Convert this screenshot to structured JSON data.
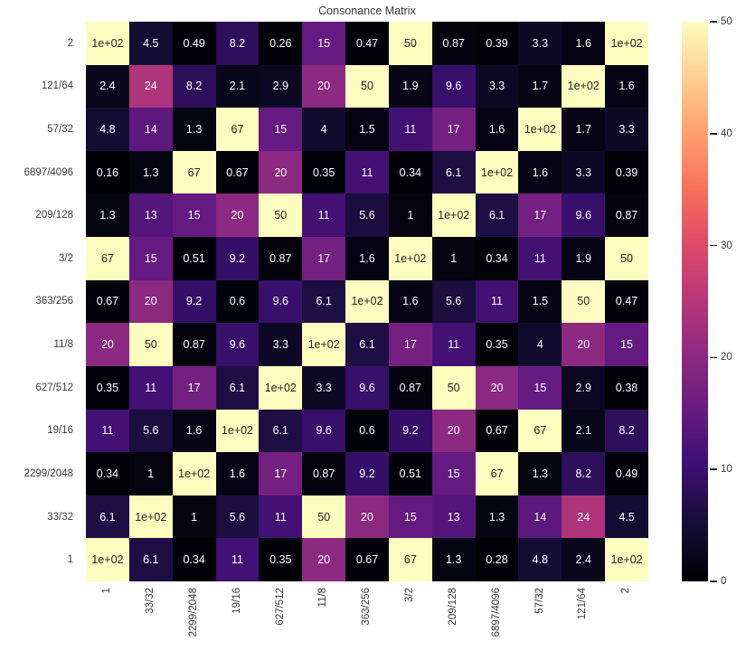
{
  "title": "Consonance Matrix",
  "colors": {
    "background": "#ffffff",
    "axis_text": "#3a3a3a",
    "annot_dark": "#262626",
    "annot_light": "#ffffff",
    "magma_anchors": [
      "#000004",
      "#140e36",
      "#3b0f70",
      "#641a80",
      "#8c2981",
      "#b73779",
      "#de4968",
      "#f7705c",
      "#fe9f6d",
      "#fecf92",
      "#fcfdbf"
    ]
  },
  "chart_data": {
    "type": "heatmap",
    "title": "Consonance Matrix",
    "colormap": "magma",
    "vmin": 0,
    "vmax": 50,
    "grid": false,
    "x_labels": [
      "1",
      "33/32",
      "2299/2048",
      "19/16",
      "627/512",
      "11/8",
      "363/256",
      "3/2",
      "209/128",
      "6897/4096",
      "57/32",
      "121/64",
      "2"
    ],
    "y_labels": [
      "2",
      "121/64",
      "57/32",
      "6897/4096",
      "209/128",
      "3/2",
      "363/256",
      "11/8",
      "627/512",
      "19/16",
      "2299/2048",
      "33/32",
      "1"
    ],
    "values": [
      [
        100,
        4.5,
        0.49,
        8.2,
        0.26,
        15,
        0.47,
        50,
        0.87,
        0.39,
        3.3,
        1.6,
        100
      ],
      [
        2.4,
        24,
        8.2,
        2.1,
        2.9,
        20,
        50,
        1.9,
        9.6,
        3.3,
        1.7,
        100,
        1.6
      ],
      [
        4.8,
        14,
        1.3,
        67,
        15,
        4,
        1.5,
        11,
        17,
        1.6,
        100,
        1.7,
        3.3
      ],
      [
        0.16,
        1.3,
        67,
        0.67,
        20,
        0.35,
        11,
        0.34,
        6.1,
        100,
        1.6,
        3.3,
        0.39
      ],
      [
        1.3,
        13,
        15,
        20,
        50,
        11,
        5.6,
        1,
        100,
        6.1,
        17,
        9.6,
        0.87
      ],
      [
        67,
        15,
        0.51,
        9.2,
        0.87,
        17,
        1.6,
        100,
        1,
        0.34,
        11,
        1.9,
        50
      ],
      [
        0.67,
        20,
        9.2,
        0.6,
        9.6,
        6.1,
        100,
        1.6,
        5.6,
        11,
        1.5,
        50,
        0.47
      ],
      [
        20,
        50,
        0.87,
        9.6,
        3.3,
        100,
        6.1,
        17,
        11,
        0.35,
        4,
        20,
        15
      ],
      [
        0.35,
        11,
        17,
        6.1,
        100,
        3.3,
        9.6,
        0.87,
        50,
        20,
        15,
        2.9,
        0.38
      ],
      [
        11,
        5.6,
        1.6,
        100,
        6.1,
        9.6,
        0.6,
        9.2,
        20,
        0.67,
        67,
        2.1,
        8.2
      ],
      [
        0.34,
        1,
        100,
        1.6,
        17,
        0.87,
        9.2,
        0.51,
        15,
        67,
        1.3,
        8.2,
        0.49
      ],
      [
        6.1,
        100,
        1,
        5.6,
        11,
        50,
        20,
        15,
        13,
        1.3,
        14,
        24,
        4.5
      ],
      [
        100,
        6.1,
        0.34,
        11,
        0.35,
        20,
        0.67,
        67,
        1.3,
        0.28,
        4.8,
        2.4,
        100
      ]
    ],
    "annotations": [
      [
        "1e+02",
        "4.5",
        "0.49",
        "8.2",
        "0.26",
        "15",
        "0.47",
        "50",
        "0.87",
        "0.39",
        "3.3",
        "1.6",
        "1e+02"
      ],
      [
        "2.4",
        "24",
        "8.2",
        "2.1",
        "2.9",
        "20",
        "50",
        "1.9",
        "9.6",
        "3.3",
        "1.7",
        "1e+02",
        "1.6"
      ],
      [
        "4.8",
        "14",
        "1.3",
        "67",
        "15",
        "4",
        "1.5",
        "11",
        "17",
        "1.6",
        "1e+02",
        "1.7",
        "3.3"
      ],
      [
        "0.16",
        "1.3",
        "67",
        "0.67",
        "20",
        "0.35",
        "11",
        "0.34",
        "6.1",
        "1e+02",
        "1.6",
        "3.3",
        "0.39"
      ],
      [
        "1.3",
        "13",
        "15",
        "20",
        "50",
        "11",
        "5.6",
        "1",
        "1e+02",
        "6.1",
        "17",
        "9.6",
        "0.87"
      ],
      [
        "67",
        "15",
        "0.51",
        "9.2",
        "0.87",
        "17",
        "1.6",
        "1e+02",
        "1",
        "0.34",
        "11",
        "1.9",
        "50"
      ],
      [
        "0.67",
        "20",
        "9.2",
        "0.6",
        "9.6",
        "6.1",
        "1e+02",
        "1.6",
        "5.6",
        "11",
        "1.5",
        "50",
        "0.47"
      ],
      [
        "20",
        "50",
        "0.87",
        "9.6",
        "3.3",
        "1e+02",
        "6.1",
        "17",
        "11",
        "0.35",
        "4",
        "20",
        "15"
      ],
      [
        "0.35",
        "11",
        "17",
        "6.1",
        "1e+02",
        "3.3",
        "9.6",
        "0.87",
        "50",
        "20",
        "15",
        "2.9",
        "0.38"
      ],
      [
        "11",
        "5.6",
        "1.6",
        "1e+02",
        "6.1",
        "9.6",
        "0.6",
        "9.2",
        "20",
        "0.67",
        "67",
        "2.1",
        "8.2"
      ],
      [
        "0.34",
        "1",
        "1e+02",
        "1.6",
        "17",
        "0.87",
        "9.2",
        "0.51",
        "15",
        "67",
        "1.3",
        "8.2",
        "0.49"
      ],
      [
        "6.1",
        "1e+02",
        "1",
        "5.6",
        "11",
        "50",
        "20",
        "15",
        "13",
        "1.3",
        "14",
        "24",
        "4.5"
      ],
      [
        "1e+02",
        "6.1",
        "0.34",
        "11",
        "0.35",
        "20",
        "0.67",
        "67",
        "1.3",
        "0.28",
        "4.8",
        "2.4",
        "1e+02"
      ]
    ],
    "colorbar": {
      "position": "right",
      "ticks": [
        "0",
        "10",
        "20",
        "30",
        "40",
        "50"
      ]
    }
  }
}
